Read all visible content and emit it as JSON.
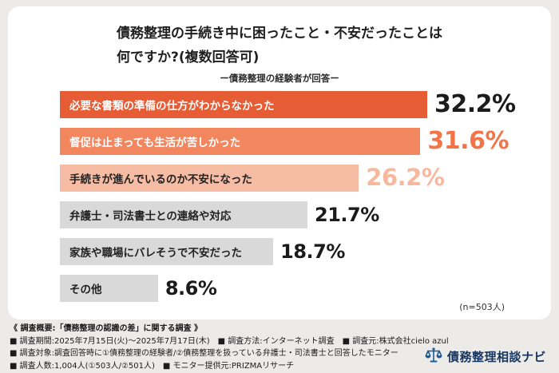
{
  "header": {
    "title_line1": "債務整理の手続き中に困ったこと・不安だったことは",
    "title_line2": "何ですか?(複数回答可)",
    "subtitle": "ー債務整理の経験者が回答ー"
  },
  "chart_data": {
    "type": "bar",
    "orientation": "horizontal",
    "title": "債務整理の手続き中に困ったこと・不安だったことは何ですか?(複数回答可)",
    "subtitle": "ー債務整理の経験者が回答ー",
    "unit": "%",
    "xlim": [
      0,
      32.2
    ],
    "n_label": "(n=503人)",
    "categories": [
      "必要な書類の準備の仕方がわからなかった",
      "督促は止まっても生活が苦しかった",
      "手続きが進んでいるのか不安になった",
      "弁護士・司法書士との連絡や対応",
      "家族や職場にバレそうで不安だった",
      "その他"
    ],
    "values": [
      32.2,
      31.6,
      26.2,
      21.7,
      18.7,
      8.6
    ],
    "bars": [
      {
        "label": "必要な書類の準備の仕方がわからなかった",
        "value": 32.2,
        "display": "32.2%",
        "bar_color": "#e65c35",
        "label_color": "#ffffff",
        "value_color": "#1b1b1b"
      },
      {
        "label": "督促は止まっても生活が苦しかった",
        "value": 31.6,
        "display": "31.6%",
        "bar_color": "#f2865e",
        "label_color": "#ffffff",
        "value_color": "#f2754a"
      },
      {
        "label": "手続きが進んでいるのか不安になった",
        "value": 26.2,
        "display": "26.2%",
        "bar_color": "#f7bca4",
        "label_color": "#222222",
        "value_color": "#f7b89e"
      },
      {
        "label": "弁護士・司法書士との連絡や対応",
        "value": 21.7,
        "display": "21.7%",
        "bar_color": "#d9d9d9",
        "label_color": "#222222",
        "value_color": "#1b1b1b"
      },
      {
        "label": "家族や職場にバレそうで不安だった",
        "value": 18.7,
        "display": "18.7%",
        "bar_color": "#d9d9d9",
        "label_color": "#222222",
        "value_color": "#1b1b1b"
      },
      {
        "label": "その他",
        "value": 8.6,
        "display": "8.6%",
        "bar_color": "#d9d9d9",
        "label_color": "#222222",
        "value_color": "#1b1b1b"
      }
    ]
  },
  "footer": {
    "line1": "《 調査概要:「債務整理の認識の差」に関する調査 》",
    "line2": "■ 調査期間:2025年7月15日(火)〜2025年7月17日(木)　■ 調査方法:インターネット調査　■ 調査元:株式会社cielo azul",
    "line3": "■ 調査対象:調査回答時に①債務整理の経験者/②債務整理を扱っている弁護士・司法書士と回答したモニター",
    "line4": "■ 調査人数:1,004人(①503人/②501人)　■ モニター提供元:PRIZMAリサーチ",
    "brand": {
      "name": "債務整理相談ナビ",
      "icon": "scales-icon",
      "color": "#16355e",
      "icon_color": "#1c5d99"
    }
  }
}
